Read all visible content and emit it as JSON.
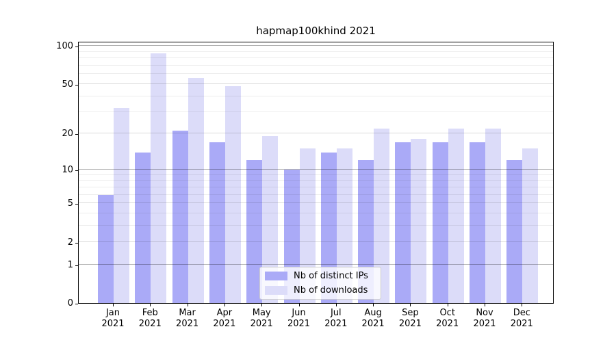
{
  "title": "hapmap100khind 2021",
  "chart_data": {
    "type": "bar",
    "title": "hapmap100khind 2021",
    "categories": [
      "Jan 2021",
      "Feb 2021",
      "Mar 2021",
      "Apr 2021",
      "May 2021",
      "Jun 2021",
      "Jul 2021",
      "Aug 2021",
      "Sep 2021",
      "Oct 2021",
      "Nov 2021",
      "Dec 2021"
    ],
    "x_tick_month": [
      "Jan",
      "Feb",
      "Mar",
      "Apr",
      "May",
      "Jun",
      "Jul",
      "Aug",
      "Sep",
      "Oct",
      "Nov",
      "Dec"
    ],
    "x_tick_year": "2021",
    "series": [
      {
        "name": "Nb of distinct IPs",
        "color": "#aaaaf7",
        "values": [
          6,
          14,
          21,
          17,
          12,
          10,
          14,
          12,
          17,
          17,
          17,
          12
        ]
      },
      {
        "name": "Nb of downloads",
        "color": "#dcdcf9",
        "values": [
          32,
          88,
          56,
          48,
          19,
          15,
          15,
          22,
          18,
          22,
          22,
          15
        ]
      }
    ],
    "xlabel": "",
    "ylabel": "",
    "yscale": "log1p",
    "ylim": [
      0,
      110
    ],
    "yticks_labeled": [
      0,
      1,
      2,
      5,
      10,
      20,
      50,
      100
    ],
    "yticks_decade": [
      1,
      10,
      100
    ],
    "yticks_mid": [
      2,
      5,
      20,
      50
    ],
    "yticks_minor": [
      3,
      4,
      6,
      7,
      8,
      9,
      30,
      40,
      60,
      70,
      80,
      90
    ],
    "grid": true,
    "grid_on_top_of_bars": true,
    "legend_position": "lower center",
    "colors": {
      "distinct_ips_bar": "#aaaaf7",
      "downloads_bar": "#dcdcf9",
      "spine": "#000000",
      "grid_major": "#b1b1b1",
      "grid_mid": "#dbdbdb",
      "grid_minor": "#ededed",
      "background": "#ffffff",
      "text": "#000000"
    }
  }
}
